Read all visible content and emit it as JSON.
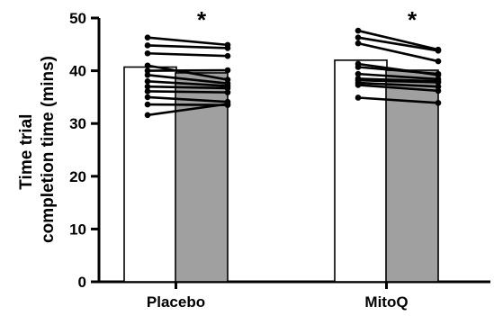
{
  "chart_data": {
    "type": "bar",
    "categories": [
      "Placebo",
      "MitoQ"
    ],
    "ylabel_lines": [
      "Time trial",
      "completion time (mins)"
    ],
    "ylim": [
      0,
      50
    ],
    "yticks": [
      0,
      10,
      20,
      30,
      40,
      50
    ],
    "colors": {
      "bar_pre": "#ffffff",
      "bar_post": "#a0a0a0",
      "line": "#000000"
    },
    "series": [
      {
        "values": [
          40.7,
          42.0
        ]
      },
      {
        "values": [
          39.6,
          40.1
        ]
      }
    ],
    "paired_points": [
      [
        [
          46.3,
          44.9
        ],
        [
          44.8,
          44.3
        ],
        [
          43.3,
          42.8
        ],
        [
          41.0,
          38.3
        ],
        [
          40.0,
          40.1
        ],
        [
          39.2,
          37.6
        ],
        [
          38.0,
          37.1
        ],
        [
          37.0,
          36.7
        ],
        [
          36.1,
          35.9
        ],
        [
          35.0,
          34.1
        ],
        [
          33.6,
          33.5
        ],
        [
          31.6,
          33.7
        ]
      ],
      [
        [
          47.6,
          44.0
        ],
        [
          46.3,
          43.8
        ],
        [
          45.2,
          41.8
        ],
        [
          41.3,
          39.2
        ],
        [
          40.7,
          39.4
        ],
        [
          39.4,
          38.4
        ],
        [
          38.5,
          38.0
        ],
        [
          38.2,
          37.8
        ],
        [
          37.7,
          37.0
        ],
        [
          37.3,
          36.2
        ],
        [
          34.9,
          33.9
        ]
      ]
    ],
    "significance": [
      "*",
      "*"
    ]
  }
}
